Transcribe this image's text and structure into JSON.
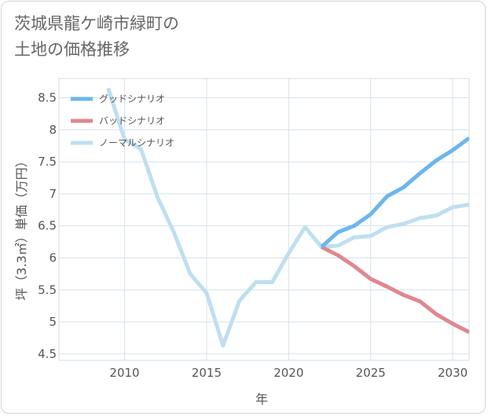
{
  "title_lines": [
    "茨城県龍ケ崎市緑町の",
    "土地の価格推移"
  ],
  "chart_data": {
    "type": "line",
    "xlabel": "年",
    "ylabel": "坪（3.3㎡）単価（万円）",
    "xlim": [
      2006,
      2031
    ],
    "ylim": [
      4.4,
      8.8
    ],
    "x_ticks": [
      2010,
      2015,
      2020,
      2025,
      2030
    ],
    "y_ticks": [
      4.5,
      5,
      5.5,
      6,
      6.5,
      7,
      7.5,
      8,
      8.5
    ],
    "legend_position": "top-left",
    "series": [
      {
        "name": "グッドシナリオ",
        "color": "#6cb6ee",
        "x": [
          2022,
          2023,
          2024,
          2025,
          2026,
          2027,
          2028,
          2029,
          2030,
          2031
        ],
        "values": [
          6.17,
          6.4,
          6.5,
          6.68,
          6.96,
          7.1,
          7.32,
          7.52,
          7.68,
          7.87
        ]
      },
      {
        "name": "バッドシナリオ",
        "color": "#e0878f",
        "x": [
          2022,
          2023,
          2024,
          2025,
          2026,
          2027,
          2028,
          2029,
          2030,
          2031
        ],
        "values": [
          6.17,
          6.04,
          5.87,
          5.67,
          5.55,
          5.42,
          5.32,
          5.12,
          4.97,
          4.84
        ]
      },
      {
        "name": "ノーマルシナリオ",
        "color": "#bfdff0",
        "x": [
          2009,
          2010,
          2011,
          2012,
          2013,
          2014,
          2015,
          2016,
          2017,
          2018,
          2019,
          2020,
          2021,
          2022,
          2023,
          2024,
          2025,
          2026,
          2027,
          2028,
          2029,
          2030,
          2031
        ],
        "values": [
          8.65,
          7.85,
          7.7,
          6.95,
          6.4,
          5.75,
          5.45,
          4.63,
          5.33,
          5.62,
          5.62,
          6.07,
          6.48,
          6.17,
          6.19,
          6.32,
          6.34,
          6.48,
          6.53,
          6.62,
          6.66,
          6.79,
          6.83
        ]
      }
    ]
  }
}
